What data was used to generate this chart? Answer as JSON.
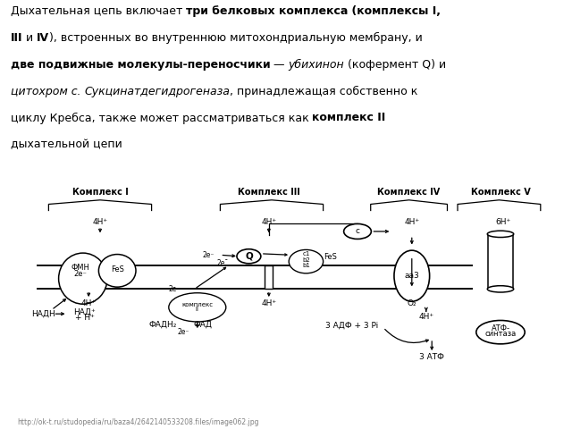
{
  "bg_color": "#ffffff",
  "url_text": "http://ok-t.ru/studopedia/ru/baza4/2642140533208.files/image062.jpg",
  "font_size_diagram": 6.5,
  "font_size_title": 9.0,
  "font_size_url": 5.5,
  "text_lines": [
    [
      [
        "Дыхательная цепь включает ",
        false,
        false
      ],
      [
        "три белковых комплекса",
        true,
        false
      ],
      [
        " (комплексы I,",
        true,
        false
      ]
    ],
    [
      [
        "III",
        true,
        false
      ],
      [
        " и ",
        false,
        false
      ],
      [
        "IV",
        true,
        false
      ],
      [
        "), встроенных во внутреннюю митохондриальную мембрану, и",
        false,
        false
      ]
    ],
    [
      [
        "две подвижные молекулы-переносчики",
        true,
        false
      ],
      [
        " — ",
        false,
        false
      ],
      [
        "убихинон",
        false,
        true
      ],
      [
        " (кофермент Q) и",
        false,
        false
      ]
    ],
    [
      [
        "цитохром с",
        false,
        true
      ],
      [
        ". ",
        false,
        false
      ],
      [
        "Сукцинатдегидрогеназа",
        false,
        true
      ],
      [
        ", принадлежащая собственно к",
        false,
        false
      ]
    ],
    [
      [
        "циклу Кребса, также может рассматриваться как ",
        false,
        false
      ],
      [
        "комплекс II",
        true,
        false
      ]
    ],
    [
      [
        "дыхательной цепи",
        false,
        false
      ]
    ]
  ]
}
